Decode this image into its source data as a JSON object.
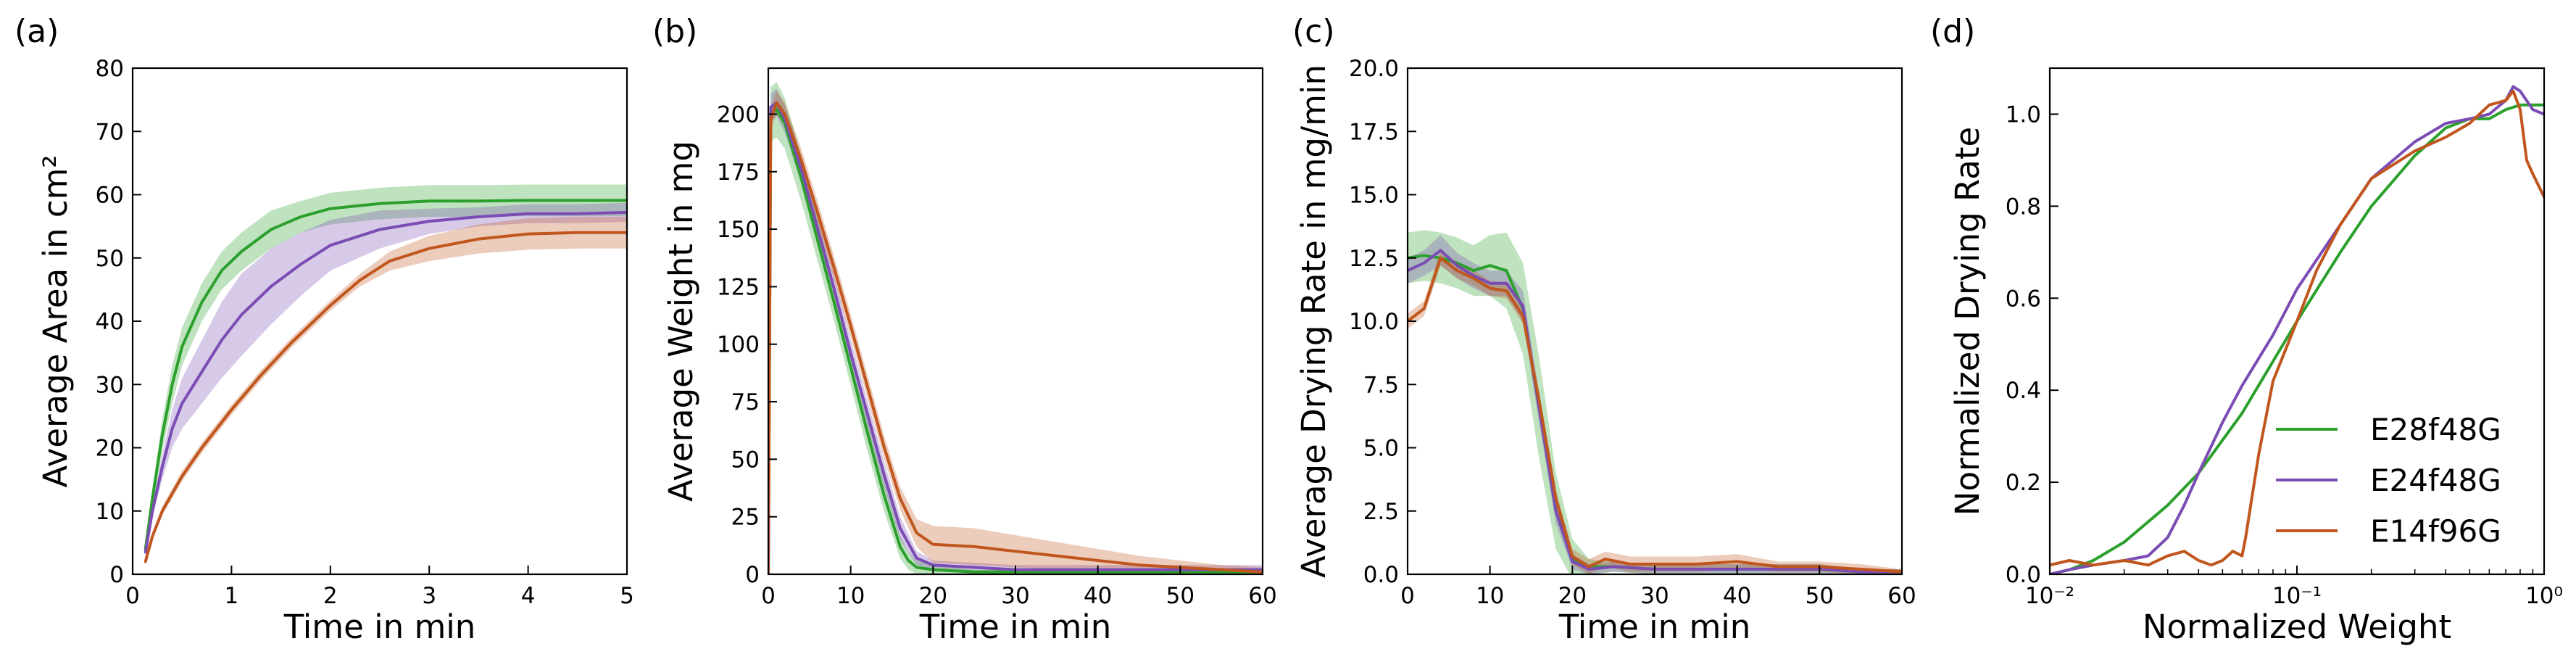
{
  "colors": {
    "E28f48G": "#2ca02c",
    "E24f48G": "#7b4db4",
    "E14f96G": "#c0561e"
  },
  "chart_data": [
    {
      "id": "a",
      "panel_label": "(a)",
      "type": "line",
      "xlabel": "Time in min",
      "ylabel": "Average Area in cm²",
      "xlim": [
        0,
        5
      ],
      "ylim": [
        0,
        80
      ],
      "xticks": [
        0,
        1,
        2,
        3,
        4,
        5
      ],
      "xtick_labels": [
        "0",
        "1",
        "2",
        "3",
        "4",
        "5"
      ],
      "yticks": [
        0,
        10,
        20,
        30,
        40,
        50,
        60,
        70,
        80
      ],
      "ytick_labels": [
        "0",
        "10",
        "20",
        "30",
        "40",
        "50",
        "60",
        "70",
        "80"
      ],
      "series": [
        {
          "name": "E28f48G",
          "color": "#2ca02c",
          "x": [
            0.13,
            0.2,
            0.3,
            0.4,
            0.5,
            0.7,
            0.9,
            1.1,
            1.4,
            1.7,
            2.0,
            2.5,
            3.0,
            3.5,
            4.0,
            4.5,
            5.0
          ],
          "y": [
            4,
            12,
            22,
            30,
            36,
            43,
            48,
            51,
            54.5,
            56.5,
            57.8,
            58.6,
            59,
            59,
            59.1,
            59.1,
            59.1
          ],
          "band": [
            0.5,
            1.5,
            2.5,
            3,
            3,
            3,
            3,
            3,
            3,
            2.5,
            2.5,
            2.5,
            2.5,
            2.5,
            2.5,
            2.5,
            2.5
          ]
        },
        {
          "name": "E24f48G",
          "color": "#7b4db4",
          "x": [
            0.13,
            0.2,
            0.3,
            0.4,
            0.5,
            0.7,
            0.9,
            1.1,
            1.4,
            1.7,
            2.0,
            2.5,
            3.0,
            3.5,
            4.0,
            4.5,
            5.0
          ],
          "y": [
            3.5,
            10,
            17,
            23,
            27,
            32,
            37,
            41,
            45.5,
            49,
            52,
            54.5,
            55.8,
            56.5,
            57,
            57,
            57.2
          ],
          "band": [
            0.5,
            1,
            2,
            3,
            4,
            5,
            6,
            6.5,
            6,
            5,
            4,
            3,
            2,
            1.5,
            1.5,
            1.5,
            1.5
          ]
        },
        {
          "name": "E14f96G",
          "color": "#c0561e",
          "x": [
            0.13,
            0.2,
            0.3,
            0.5,
            0.7,
            1.0,
            1.3,
            1.6,
            2.0,
            2.3,
            2.6,
            3.0,
            3.5,
            4.0,
            4.5,
            5.0
          ],
          "y": [
            2,
            6,
            10,
            15.5,
            20,
            26,
            31.5,
            36.5,
            42.5,
            46.5,
            49.5,
            51.5,
            53,
            53.8,
            54,
            54
          ],
          "band": [
            0.3,
            0.5,
            0.7,
            0.8,
            0.8,
            0.8,
            0.8,
            0.8,
            0.8,
            1,
            1.5,
            2,
            2.3,
            2.5,
            2.5,
            2.5
          ]
        }
      ]
    },
    {
      "id": "b",
      "panel_label": "(b)",
      "type": "line",
      "xlabel": "Time in min",
      "ylabel": "Average Weight in mg",
      "xlim": [
        0,
        60
      ],
      "ylim": [
        0,
        220
      ],
      "xticks": [
        0,
        10,
        20,
        30,
        40,
        50,
        60
      ],
      "xtick_labels": [
        "0",
        "10",
        "20",
        "30",
        "40",
        "50",
        "60"
      ],
      "yticks": [
        0,
        25,
        50,
        75,
        100,
        125,
        150,
        175,
        200
      ],
      "ytick_labels": [
        "0",
        "25",
        "50",
        "75",
        "100",
        "125",
        "150",
        "175",
        "200"
      ],
      "series": [
        {
          "name": "E28f48G",
          "color": "#2ca02c",
          "x": [
            0,
            0.3,
            1,
            2,
            4,
            6,
            8,
            10,
            12,
            14,
            16,
            17,
            18,
            20,
            25,
            30,
            40,
            50,
            60
          ],
          "y": [
            0,
            200,
            202,
            196,
            172,
            145,
            118,
            90,
            62,
            35,
            12,
            6,
            3,
            2,
            1,
            1,
            1,
            1,
            1
          ],
          "band": [
            0,
            12,
            12,
            11,
            10,
            9,
            8,
            8,
            8,
            7,
            5,
            4,
            3,
            2,
            1,
            1,
            1,
            1,
            1
          ]
        },
        {
          "name": "E24f48G",
          "color": "#7b4db4",
          "x": [
            0,
            0.3,
            1,
            2,
            4,
            6,
            8,
            10,
            12,
            14,
            16,
            18,
            20,
            25,
            30,
            40,
            50,
            60
          ],
          "y": [
            0,
            203,
            205,
            198,
            176,
            150,
            124,
            96,
            70,
            44,
            20,
            7,
            4,
            3,
            2,
            2,
            2,
            2
          ],
          "band": [
            0,
            6,
            6,
            6,
            6,
            6,
            6,
            6,
            6,
            6,
            5,
            3,
            2,
            2,
            2,
            2,
            2,
            2
          ]
        },
        {
          "name": "E14f96G",
          "color": "#c0561e",
          "x": [
            0,
            0.3,
            1,
            2,
            4,
            6,
            8,
            10,
            12,
            14,
            16,
            18,
            20,
            25,
            30,
            35,
            40,
            45,
            50,
            55,
            60
          ],
          "y": [
            0,
            198,
            205,
            200,
            180,
            157,
            133,
            108,
            82,
            56,
            33,
            18,
            13,
            12,
            10,
            8,
            6,
            4,
            3,
            2,
            1
          ],
          "band": [
            0,
            5,
            5,
            5,
            5,
            5,
            5,
            5,
            5,
            5,
            5,
            6,
            8,
            8,
            7,
            6,
            5,
            4,
            3,
            2,
            2
          ]
        }
      ]
    },
    {
      "id": "c",
      "panel_label": "(c)",
      "type": "line",
      "xlabel": "Time in min",
      "ylabel": "Average Drying Rate in mg/min",
      "xlim": [
        0,
        60
      ],
      "ylim": [
        0,
        20
      ],
      "xticks": [
        0,
        10,
        20,
        30,
        40,
        50,
        60
      ],
      "xtick_labels": [
        "0",
        "10",
        "20",
        "30",
        "40",
        "50",
        "60"
      ],
      "yticks": [
        0,
        2.5,
        5,
        7.5,
        10,
        12.5,
        15,
        17.5,
        20
      ],
      "ytick_labels": [
        "0.0",
        "2.5",
        "5.0",
        "7.5",
        "10.0",
        "12.5",
        "15.0",
        "17.5",
        "20.0"
      ],
      "series": [
        {
          "name": "E28f48G",
          "color": "#2ca02c",
          "x": [
            0,
            2,
            4,
            6,
            8,
            10,
            12,
            14,
            16,
            18,
            20,
            22,
            25,
            30,
            35,
            40,
            45,
            50,
            55,
            60
          ],
          "y": [
            12.5,
            12.6,
            12.5,
            12.3,
            12.0,
            12.2,
            12.0,
            10.5,
            6.5,
            2.5,
            0.6,
            0.3,
            0.3,
            0.2,
            0.2,
            0.2,
            0.2,
            0.2,
            0.1,
            0.1
          ],
          "band": [
            1,
            1,
            1,
            1,
            1,
            1.2,
            1.5,
            1.8,
            2,
            1.5,
            0.8,
            0.3,
            0.2,
            0.2,
            0.2,
            0.2,
            0.2,
            0.2,
            0.1,
            0.1
          ]
        },
        {
          "name": "E24f48G",
          "color": "#7b4db4",
          "x": [
            0,
            2,
            4,
            6,
            8,
            10,
            12,
            14,
            16,
            18,
            20,
            22,
            25,
            30,
            35,
            40,
            45,
            50,
            55,
            60
          ],
          "y": [
            12.0,
            12.3,
            12.8,
            12.2,
            11.8,
            11.5,
            11.5,
            10.6,
            6.5,
            2.5,
            0.5,
            0.2,
            0.3,
            0.2,
            0.2,
            0.2,
            0.2,
            0.2,
            0.1,
            0.1
          ],
          "band": [
            0.5,
            0.5,
            0.6,
            0.5,
            0.5,
            0.5,
            0.5,
            0.6,
            0.6,
            0.5,
            0.3,
            0.2,
            0.2,
            0.2,
            0.2,
            0.2,
            0.2,
            0.2,
            0.1,
            0.1
          ]
        },
        {
          "name": "E14f96G",
          "color": "#c0561e",
          "x": [
            0,
            2,
            3,
            4,
            6,
            8,
            10,
            12,
            14,
            16,
            18,
            20,
            22,
            24,
            27,
            30,
            35,
            40,
            45,
            50,
            55,
            60
          ],
          "y": [
            10.0,
            10.5,
            11.5,
            12.5,
            12.0,
            11.7,
            11.3,
            11.2,
            10.2,
            6.8,
            3.0,
            0.7,
            0.3,
            0.6,
            0.4,
            0.4,
            0.4,
            0.5,
            0.3,
            0.3,
            0.2,
            0.1
          ],
          "band": [
            0.3,
            0.3,
            0.3,
            0.3,
            0.3,
            0.3,
            0.3,
            0.3,
            0.3,
            0.3,
            0.3,
            0.3,
            0.3,
            0.3,
            0.3,
            0.3,
            0.3,
            0.3,
            0.2,
            0.2,
            0.2,
            0.1
          ]
        }
      ]
    },
    {
      "id": "d",
      "panel_label": "(d)",
      "type": "line",
      "xscale": "log",
      "xlabel": "Normalized Weight",
      "ylabel": "Normalized Drying Rate",
      "xlim": [
        0.01,
        1
      ],
      "ylim": [
        0,
        1.1
      ],
      "xticks": [
        0.01,
        0.1,
        1
      ],
      "xtick_labels": [
        "10⁻²",
        "10⁻¹",
        "10⁰"
      ],
      "yticks": [
        0,
        0.2,
        0.4,
        0.6,
        0.8,
        1.0
      ],
      "ytick_labels": [
        "0.0",
        "0.2",
        "0.4",
        "0.6",
        "0.8",
        "1.0"
      ],
      "legend": {
        "position": "lower-right",
        "entries": [
          "E28f48G",
          "E24f48G",
          "E14f96G"
        ]
      },
      "series": [
        {
          "name": "E28f48G",
          "color": "#2ca02c",
          "x": [
            0.01,
            0.012,
            0.015,
            0.02,
            0.03,
            0.04,
            0.06,
            0.1,
            0.15,
            0.2,
            0.3,
            0.4,
            0.5,
            0.6,
            0.7,
            0.8,
            1.0
          ],
          "y": [
            0.0,
            0.01,
            0.03,
            0.07,
            0.15,
            0.22,
            0.35,
            0.55,
            0.7,
            0.8,
            0.91,
            0.97,
            0.99,
            0.99,
            1.01,
            1.02,
            1.02
          ]
        },
        {
          "name": "E24f48G",
          "color": "#7b4db4",
          "x": [
            0.01,
            0.012,
            0.015,
            0.02,
            0.025,
            0.03,
            0.035,
            0.04,
            0.05,
            0.06,
            0.08,
            0.1,
            0.15,
            0.2,
            0.3,
            0.4,
            0.5,
            0.6,
            0.7,
            0.75,
            0.8,
            0.9,
            1.0
          ],
          "y": [
            0.0,
            0.01,
            0.02,
            0.03,
            0.04,
            0.08,
            0.15,
            0.22,
            0.33,
            0.41,
            0.52,
            0.62,
            0.76,
            0.86,
            0.94,
            0.98,
            0.99,
            1.0,
            1.03,
            1.06,
            1.05,
            1.01,
            1.0
          ]
        },
        {
          "name": "E14f96G",
          "color": "#c0561e",
          "x": [
            0.01,
            0.012,
            0.015,
            0.02,
            0.025,
            0.03,
            0.035,
            0.04,
            0.045,
            0.05,
            0.055,
            0.06,
            0.062,
            0.065,
            0.07,
            0.08,
            0.1,
            0.12,
            0.15,
            0.2,
            0.3,
            0.4,
            0.5,
            0.6,
            0.7,
            0.75,
            0.8,
            0.85,
            0.9,
            1.0
          ],
          "y": [
            0.02,
            0.03,
            0.02,
            0.03,
            0.02,
            0.04,
            0.05,
            0.03,
            0.02,
            0.03,
            0.05,
            0.04,
            0.08,
            0.15,
            0.26,
            0.42,
            0.55,
            0.66,
            0.76,
            0.86,
            0.92,
            0.95,
            0.98,
            1.02,
            1.03,
            1.05,
            1.01,
            0.9,
            0.87,
            0.82
          ]
        }
      ]
    }
  ]
}
